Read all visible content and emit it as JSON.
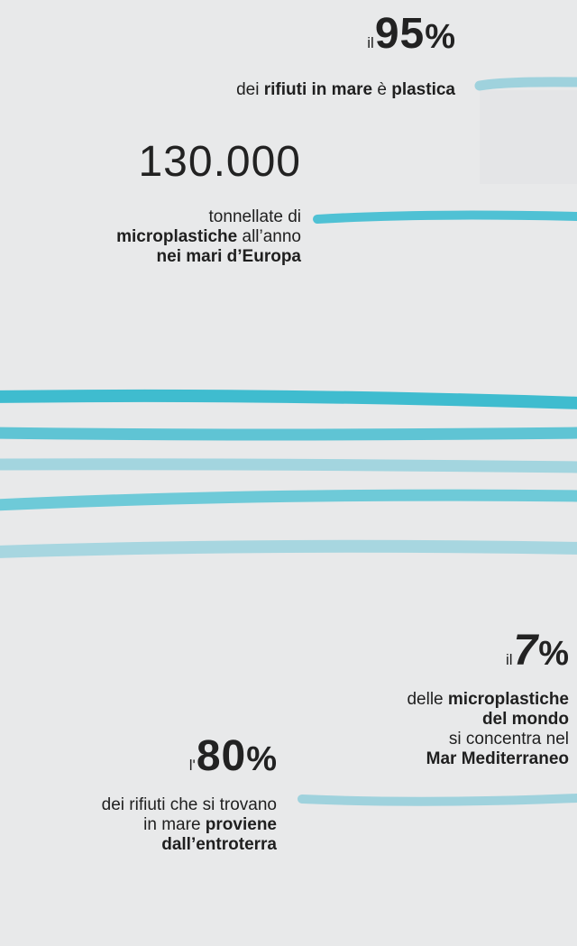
{
  "stat_95": {
    "prefix": "il",
    "value": "95",
    "unit": "%",
    "line1_a": "dei ",
    "line1_b": "rifiuti in mare",
    "line1_c": " è ",
    "line1_d": "plastica"
  },
  "stat_130k": {
    "value": "130.000",
    "line1": "tonnellate di",
    "line2_a": "microplastiche",
    "line2_b": " all’anno",
    "line3": "nei mari d’Europa"
  },
  "stat_7": {
    "prefix": "il",
    "value": "7",
    "unit": "%",
    "line1_a": "delle ",
    "line1_b": "microplastiche",
    "line2": "del mondo",
    "line3": "si concentra nel",
    "line4": "Mar Mediterraneo"
  },
  "stat_80": {
    "prefix": "l'",
    "value": "80",
    "unit": "%",
    "line1": "dei rifiuti che si trovano",
    "line2_a": "in mare ",
    "line2_b": "proviene",
    "line3": "dall’entroterra"
  },
  "colors": {
    "background": "#e8e9ea",
    "stroke_light": "#a9d7e0",
    "stroke_mid": "#6cc6d5",
    "stroke_dark": "#3bbdd0"
  }
}
